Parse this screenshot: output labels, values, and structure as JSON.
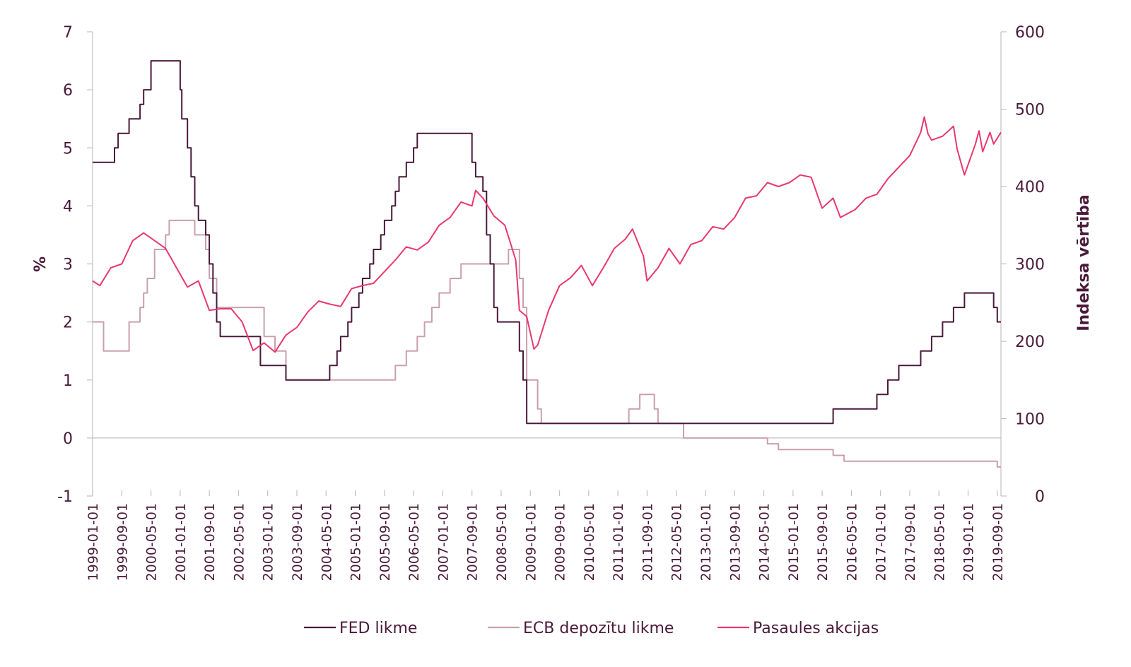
{
  "chart_data": {
    "type": "line",
    "title": "",
    "ylabel_left": "%",
    "ylabel_right": "Indeksa vērtība",
    "ylim_left": [
      -1,
      7
    ],
    "yticks_left": [
      "-1",
      "0",
      "1",
      "2",
      "3",
      "4",
      "5",
      "6",
      "7"
    ],
    "ylim_right": [
      0,
      600
    ],
    "yticks_right": [
      "0",
      "100",
      "200",
      "300",
      "400",
      "500",
      "600"
    ],
    "x_range": [
      "1999-01-01",
      "2019-10-01"
    ],
    "x_tick_labels": [
      "1999-01-01",
      "1999-09-01",
      "2000-05-01",
      "2001-01-01",
      "2001-09-01",
      "2002-05-01",
      "2003-01-01",
      "2003-09-01",
      "2004-05-01",
      "2005-01-01",
      "2005-09-01",
      "2006-05-01",
      "2007-01-01",
      "2007-09-01",
      "2008-05-01",
      "2009-01-01",
      "2009-09-01",
      "2010-05-01",
      "2011-01-01",
      "2011-09-01",
      "2012-05-01",
      "2013-01-01",
      "2013-09-01",
      "2014-05-01",
      "2015-01-01",
      "2015-09-01",
      "2016-05-01",
      "2017-01-01",
      "2017-09-01",
      "2018-05-01",
      "2019-01-01",
      "2019-09-01"
    ],
    "grid": false,
    "legend_position": "bottom",
    "series": [
      {
        "name": "FED likme",
        "axis": "left",
        "color": "#4a1a3a",
        "step": true,
        "points": [
          [
            "1999-01-01",
            4.75
          ],
          [
            "1999-07-01",
            5.0
          ],
          [
            "1999-08-01",
            5.25
          ],
          [
            "1999-11-01",
            5.5
          ],
          [
            "2000-02-01",
            5.75
          ],
          [
            "2000-03-01",
            6.0
          ],
          [
            "2000-05-01",
            6.5
          ],
          [
            "2001-01-01",
            6.0
          ],
          [
            "2001-01-15",
            5.5
          ],
          [
            "2001-02-01",
            5.5
          ],
          [
            "2001-03-01",
            5.0
          ],
          [
            "2001-04-01",
            4.5
          ],
          [
            "2001-05-01",
            4.0
          ],
          [
            "2001-06-01",
            3.75
          ],
          [
            "2001-08-01",
            3.5
          ],
          [
            "2001-09-01",
            3.0
          ],
          [
            "2001-10-01",
            2.5
          ],
          [
            "2001-11-01",
            2.0
          ],
          [
            "2001-12-01",
            1.75
          ],
          [
            "2002-11-01",
            1.25
          ],
          [
            "2003-06-01",
            1.0
          ],
          [
            "2004-06-01",
            1.25
          ],
          [
            "2004-08-01",
            1.5
          ],
          [
            "2004-09-01",
            1.75
          ],
          [
            "2004-11-01",
            2.0
          ],
          [
            "2004-12-01",
            2.25
          ],
          [
            "2005-02-01",
            2.5
          ],
          [
            "2005-03-01",
            2.75
          ],
          [
            "2005-05-01",
            3.0
          ],
          [
            "2005-06-01",
            3.25
          ],
          [
            "2005-08-01",
            3.5
          ],
          [
            "2005-09-01",
            3.75
          ],
          [
            "2005-11-01",
            4.0
          ],
          [
            "2005-12-01",
            4.25
          ],
          [
            "2006-01-01",
            4.5
          ],
          [
            "2006-03-01",
            4.75
          ],
          [
            "2006-05-01",
            5.0
          ],
          [
            "2006-06-01",
            5.25
          ],
          [
            "2007-09-01",
            4.75
          ],
          [
            "2007-10-01",
            4.5
          ],
          [
            "2007-12-01",
            4.25
          ],
          [
            "2008-01-01",
            3.5
          ],
          [
            "2008-02-01",
            3.0
          ],
          [
            "2008-03-01",
            2.25
          ],
          [
            "2008-04-01",
            2.0
          ],
          [
            "2008-10-01",
            1.5
          ],
          [
            "2008-11-01",
            1.0
          ],
          [
            "2008-12-01",
            0.25
          ],
          [
            "2015-12-01",
            0.5
          ],
          [
            "2016-12-01",
            0.75
          ],
          [
            "2017-03-01",
            1.0
          ],
          [
            "2017-06-01",
            1.25
          ],
          [
            "2017-12-01",
            1.5
          ],
          [
            "2018-03-01",
            1.75
          ],
          [
            "2018-06-01",
            2.0
          ],
          [
            "2018-09-01",
            2.25
          ],
          [
            "2018-12-01",
            2.5
          ],
          [
            "2019-08-01",
            2.25
          ],
          [
            "2019-09-01",
            2.0
          ],
          [
            "2019-10-01",
            2.0
          ]
        ]
      },
      {
        "name": "ECB depozītu likme",
        "axis": "left",
        "color": "#c9a0ad",
        "step": true,
        "points": [
          [
            "1999-01-01",
            2.0
          ],
          [
            "1999-04-01",
            1.5
          ],
          [
            "1999-11-01",
            2.0
          ],
          [
            "2000-02-01",
            2.25
          ],
          [
            "2000-03-01",
            2.5
          ],
          [
            "2000-04-01",
            2.75
          ],
          [
            "2000-06-01",
            3.25
          ],
          [
            "2000-09-01",
            3.5
          ],
          [
            "2000-10-01",
            3.75
          ],
          [
            "2001-05-01",
            3.5
          ],
          [
            "2001-08-01",
            3.25
          ],
          [
            "2001-09-01",
            2.75
          ],
          [
            "2001-11-01",
            2.25
          ],
          [
            "2002-12-01",
            1.75
          ],
          [
            "2003-03-01",
            1.5
          ],
          [
            "2003-06-01",
            1.0
          ],
          [
            "2005-12-01",
            1.25
          ],
          [
            "2006-03-01",
            1.5
          ],
          [
            "2006-06-01",
            1.75
          ],
          [
            "2006-08-01",
            2.0
          ],
          [
            "2006-10-01",
            2.25
          ],
          [
            "2006-12-01",
            2.5
          ],
          [
            "2007-03-01",
            2.75
          ],
          [
            "2007-06-01",
            3.0
          ],
          [
            "2008-07-01",
            3.25
          ],
          [
            "2008-10-01",
            2.75
          ],
          [
            "2008-11-01",
            2.25
          ],
          [
            "2008-12-01",
            1.0
          ],
          [
            "2009-03-01",
            0.5
          ],
          [
            "2009-04-01",
            0.25
          ],
          [
            "2011-04-01",
            0.5
          ],
          [
            "2011-07-01",
            0.75
          ],
          [
            "2011-11-01",
            0.5
          ],
          [
            "2011-12-01",
            0.25
          ],
          [
            "2012-07-01",
            0.0
          ],
          [
            "2014-06-01",
            -0.1
          ],
          [
            "2014-09-01",
            -0.2
          ],
          [
            "2015-12-01",
            -0.3
          ],
          [
            "2016-03-01",
            -0.4
          ],
          [
            "2019-09-01",
            -0.5
          ],
          [
            "2019-10-01",
            -0.5
          ]
        ]
      },
      {
        "name": "Pasaules akcijas",
        "axis": "right",
        "color": "#e8386f",
        "step": false,
        "points": [
          [
            "1999-01-01",
            278
          ],
          [
            "1999-03-01",
            272
          ],
          [
            "1999-06-01",
            295
          ],
          [
            "1999-09-01",
            300
          ],
          [
            "1999-12-01",
            330
          ],
          [
            "2000-03-01",
            340
          ],
          [
            "2000-06-01",
            330
          ],
          [
            "2000-09-01",
            320
          ],
          [
            "2000-12-01",
            295
          ],
          [
            "2001-03-01",
            270
          ],
          [
            "2001-06-01",
            278
          ],
          [
            "2001-09-01",
            240
          ],
          [
            "2001-12-01",
            242
          ],
          [
            "2002-03-01",
            242
          ],
          [
            "2002-06-01",
            225
          ],
          [
            "2002-09-01",
            188
          ],
          [
            "2002-12-01",
            198
          ],
          [
            "2003-03-01",
            186
          ],
          [
            "2003-06-01",
            208
          ],
          [
            "2003-09-01",
            218
          ],
          [
            "2003-12-01",
            238
          ],
          [
            "2004-03-01",
            252
          ],
          [
            "2004-06-01",
            248
          ],
          [
            "2004-09-01",
            245
          ],
          [
            "2004-12-01",
            268
          ],
          [
            "2005-03-01",
            272
          ],
          [
            "2005-06-01",
            275
          ],
          [
            "2005-09-01",
            290
          ],
          [
            "2005-12-01",
            305
          ],
          [
            "2006-03-01",
            322
          ],
          [
            "2006-06-01",
            318
          ],
          [
            "2006-09-01",
            328
          ],
          [
            "2006-12-01",
            350
          ],
          [
            "2007-03-01",
            360
          ],
          [
            "2007-06-01",
            380
          ],
          [
            "2007-09-01",
            375
          ],
          [
            "2007-10-01",
            395
          ],
          [
            "2007-12-01",
            385
          ],
          [
            "2008-03-01",
            362
          ],
          [
            "2008-06-01",
            350
          ],
          [
            "2008-09-01",
            305
          ],
          [
            "2008-10-01",
            240
          ],
          [
            "2008-12-01",
            232
          ],
          [
            "2009-02-01",
            190
          ],
          [
            "2009-03-01",
            195
          ],
          [
            "2009-06-01",
            240
          ],
          [
            "2009-09-01",
            272
          ],
          [
            "2009-12-01",
            282
          ],
          [
            "2010-03-01",
            298
          ],
          [
            "2010-06-01",
            272
          ],
          [
            "2010-09-01",
            295
          ],
          [
            "2010-12-01",
            320
          ],
          [
            "2011-03-01",
            332
          ],
          [
            "2011-05-01",
            345
          ],
          [
            "2011-08-01",
            310
          ],
          [
            "2011-09-01",
            278
          ],
          [
            "2011-12-01",
            295
          ],
          [
            "2012-03-01",
            320
          ],
          [
            "2012-06-01",
            300
          ],
          [
            "2012-09-01",
            325
          ],
          [
            "2012-12-01",
            330
          ],
          [
            "2013-03-01",
            348
          ],
          [
            "2013-06-01",
            345
          ],
          [
            "2013-09-01",
            360
          ],
          [
            "2013-12-01",
            385
          ],
          [
            "2014-03-01",
            388
          ],
          [
            "2014-06-01",
            405
          ],
          [
            "2014-09-01",
            400
          ],
          [
            "2014-12-01",
            405
          ],
          [
            "2015-03-01",
            415
          ],
          [
            "2015-06-01",
            412
          ],
          [
            "2015-08-01",
            385
          ],
          [
            "2015-09-01",
            372
          ],
          [
            "2015-12-01",
            385
          ],
          [
            "2016-02-01",
            360
          ],
          [
            "2016-06-01",
            370
          ],
          [
            "2016-09-01",
            385
          ],
          [
            "2016-12-01",
            390
          ],
          [
            "2017-03-01",
            410
          ],
          [
            "2017-06-01",
            425
          ],
          [
            "2017-09-01",
            440
          ],
          [
            "2017-12-01",
            470
          ],
          [
            "2018-01-01",
            490
          ],
          [
            "2018-02-01",
            468
          ],
          [
            "2018-03-01",
            460
          ],
          [
            "2018-06-01",
            465
          ],
          [
            "2018-09-01",
            478
          ],
          [
            "2018-10-01",
            448
          ],
          [
            "2018-12-01",
            415
          ],
          [
            "2019-03-01",
            455
          ],
          [
            "2019-04-01",
            472
          ],
          [
            "2019-05-01",
            445
          ],
          [
            "2019-07-01",
            470
          ],
          [
            "2019-08-01",
            455
          ],
          [
            "2019-10-01",
            470
          ]
        ]
      }
    ]
  }
}
